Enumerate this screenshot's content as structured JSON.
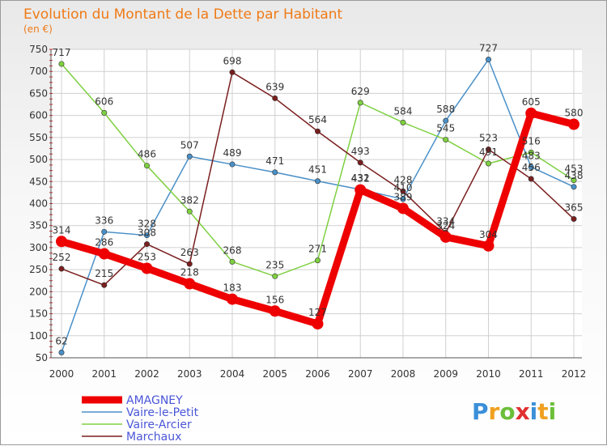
{
  "chart_data": {
    "type": "line",
    "title": "Evolution du Montant de la Dette par Habitant",
    "subtitle": "(en €)",
    "xlabel": "",
    "ylabel": "",
    "ylim": [
      50,
      750
    ],
    "y_ticks": [
      50,
      100,
      150,
      200,
      250,
      300,
      350,
      400,
      450,
      500,
      550,
      600,
      650,
      700,
      750
    ],
    "categories": [
      "2000",
      "2001",
      "2002",
      "2003",
      "2004",
      "2005",
      "2006",
      "2007",
      "2008",
      "2009",
      "2010",
      "2011",
      "2012"
    ],
    "grid": true,
    "legend_position": "bottom-left",
    "series": [
      {
        "name": "AMAGNEY",
        "color": "#ee0000",
        "emphasis": true,
        "values": [
          314,
          286,
          253,
          218,
          183,
          156,
          127,
          431,
          389,
          324,
          304,
          605,
          580
        ]
      },
      {
        "name": "Vaire-le-Petit",
        "color": "#4a90c8",
        "emphasis": false,
        "values": [
          62,
          336,
          328,
          507,
          489,
          471,
          451,
          432,
          410,
          588,
          727,
          483,
          438
        ]
      },
      {
        "name": "Vaire-Arcier",
        "color": "#7ed040",
        "emphasis": false,
        "values": [
          717,
          606,
          486,
          382,
          268,
          235,
          271,
          629,
          584,
          545,
          491,
          516,
          453
        ]
      },
      {
        "name": "Marchaux",
        "color": "#7a1e1e",
        "emphasis": false,
        "values": [
          252,
          215,
          308,
          263,
          698,
          639,
          564,
          493,
          428,
          334,
          523,
          456,
          365
        ]
      }
    ]
  },
  "brand": {
    "letters": [
      "P",
      "r",
      "o",
      "x",
      "i",
      "t",
      "i"
    ],
    "colors": [
      "#3b8fd9",
      "#f0a020",
      "#6bbf3a",
      "#e03030",
      "#3b8fd9",
      "#f0a020",
      "#6bbf3a"
    ]
  }
}
